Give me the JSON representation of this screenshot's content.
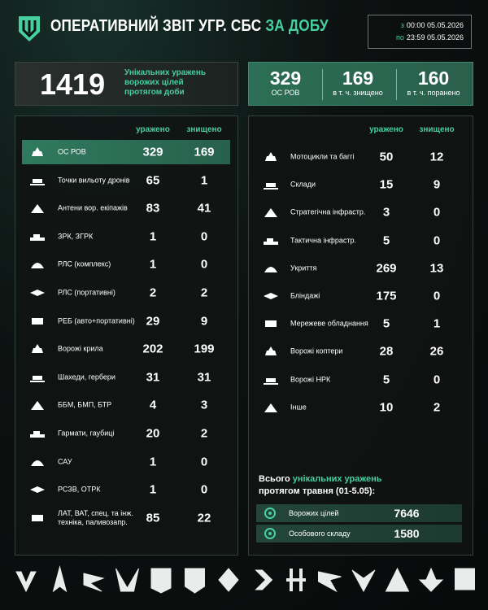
{
  "header": {
    "title_main": "ОПЕРАТИВНИЙ ЗВІТ УГР. СБС",
    "title_accent": "ЗА ДОБУ",
    "period": [
      {
        "prefix": "з",
        "text": "00:00 05.05.2026"
      },
      {
        "prefix": "по",
        "text": "23:59 05.05.2026"
      }
    ]
  },
  "summary": {
    "total": 1419,
    "total_label": "Унікальних уражень ворожих цілей протягом доби",
    "items": [
      {
        "value": 329,
        "label": "ОС РОВ"
      },
      {
        "value": 169,
        "label": "в т. ч. знищено"
      },
      {
        "value": 160,
        "label": "в т. ч. поранено"
      }
    ]
  },
  "left_table": {
    "columns": [
      "уражено",
      "знищено"
    ],
    "rows": [
      {
        "label": "ОС РОВ",
        "hit": 329,
        "destroyed": 169
      },
      {
        "label": "Точки вильоту дронів",
        "hit": 65,
        "destroyed": 1
      },
      {
        "label": "Антени вор. екіпажів",
        "hit": 83,
        "destroyed": 41
      },
      {
        "label": "ЗРК, ЗГРК",
        "hit": 1,
        "destroyed": 0
      },
      {
        "label": "РЛС (комплекс)",
        "hit": 1,
        "destroyed": 0
      },
      {
        "label": "РЛС (портативні)",
        "hit": 2,
        "destroyed": 2
      },
      {
        "label": "РЕБ (авто+портативні)",
        "hit": 29,
        "destroyed": 9
      },
      {
        "label": "Ворожі крила",
        "hit": 202,
        "destroyed": 199
      },
      {
        "label": "Шахеди, гербери",
        "hit": 31,
        "destroyed": 31
      },
      {
        "label": "ББМ, БМП, БТР",
        "hit": 4,
        "destroyed": 3
      },
      {
        "label": "Гармати, гаубиці",
        "hit": 20,
        "destroyed": 2
      },
      {
        "label": "САУ",
        "hit": 1,
        "destroyed": 0
      },
      {
        "label": "РСЗВ, ОТРК",
        "hit": 1,
        "destroyed": 0
      },
      {
        "label": "ЛАТ, ВАТ, спец. та інж. техніка, паливозапр.",
        "hit": 85,
        "destroyed": 22
      }
    ]
  },
  "right_table": {
    "columns": [
      "уражено",
      "знищено"
    ],
    "rows": [
      {
        "label": "Мотоцикли та баггі",
        "hit": 50,
        "destroyed": 12
      },
      {
        "label": "Склади",
        "hit": 15,
        "destroyed": 9
      },
      {
        "label": "Стратегічна інфрастр.",
        "hit": 3,
        "destroyed": 0
      },
      {
        "label": "Тактична інфрастр.",
        "hit": 5,
        "destroyed": 0
      },
      {
        "label": "Укриття",
        "hit": 269,
        "destroyed": 13
      },
      {
        "label": "Бліндажі",
        "hit": 175,
        "destroyed": 0
      },
      {
        "label": "Мережеве обладнання",
        "hit": 5,
        "destroyed": 1
      },
      {
        "label": "Ворожі коптери",
        "hit": 28,
        "destroyed": 26
      },
      {
        "label": "Ворожі НРК",
        "hit": 5,
        "destroyed": 0
      },
      {
        "label": "Інше",
        "hit": 10,
        "destroyed": 2
      }
    ]
  },
  "month_totals": {
    "title_start": "Всього",
    "title_accent": "унікальних уражень",
    "title_end": "протягом травня (01-5.05):",
    "items": [
      {
        "label": "Ворожих цілей",
        "value": 7646
      },
      {
        "label": "Особового складу",
        "value": 1580
      }
    ]
  }
}
